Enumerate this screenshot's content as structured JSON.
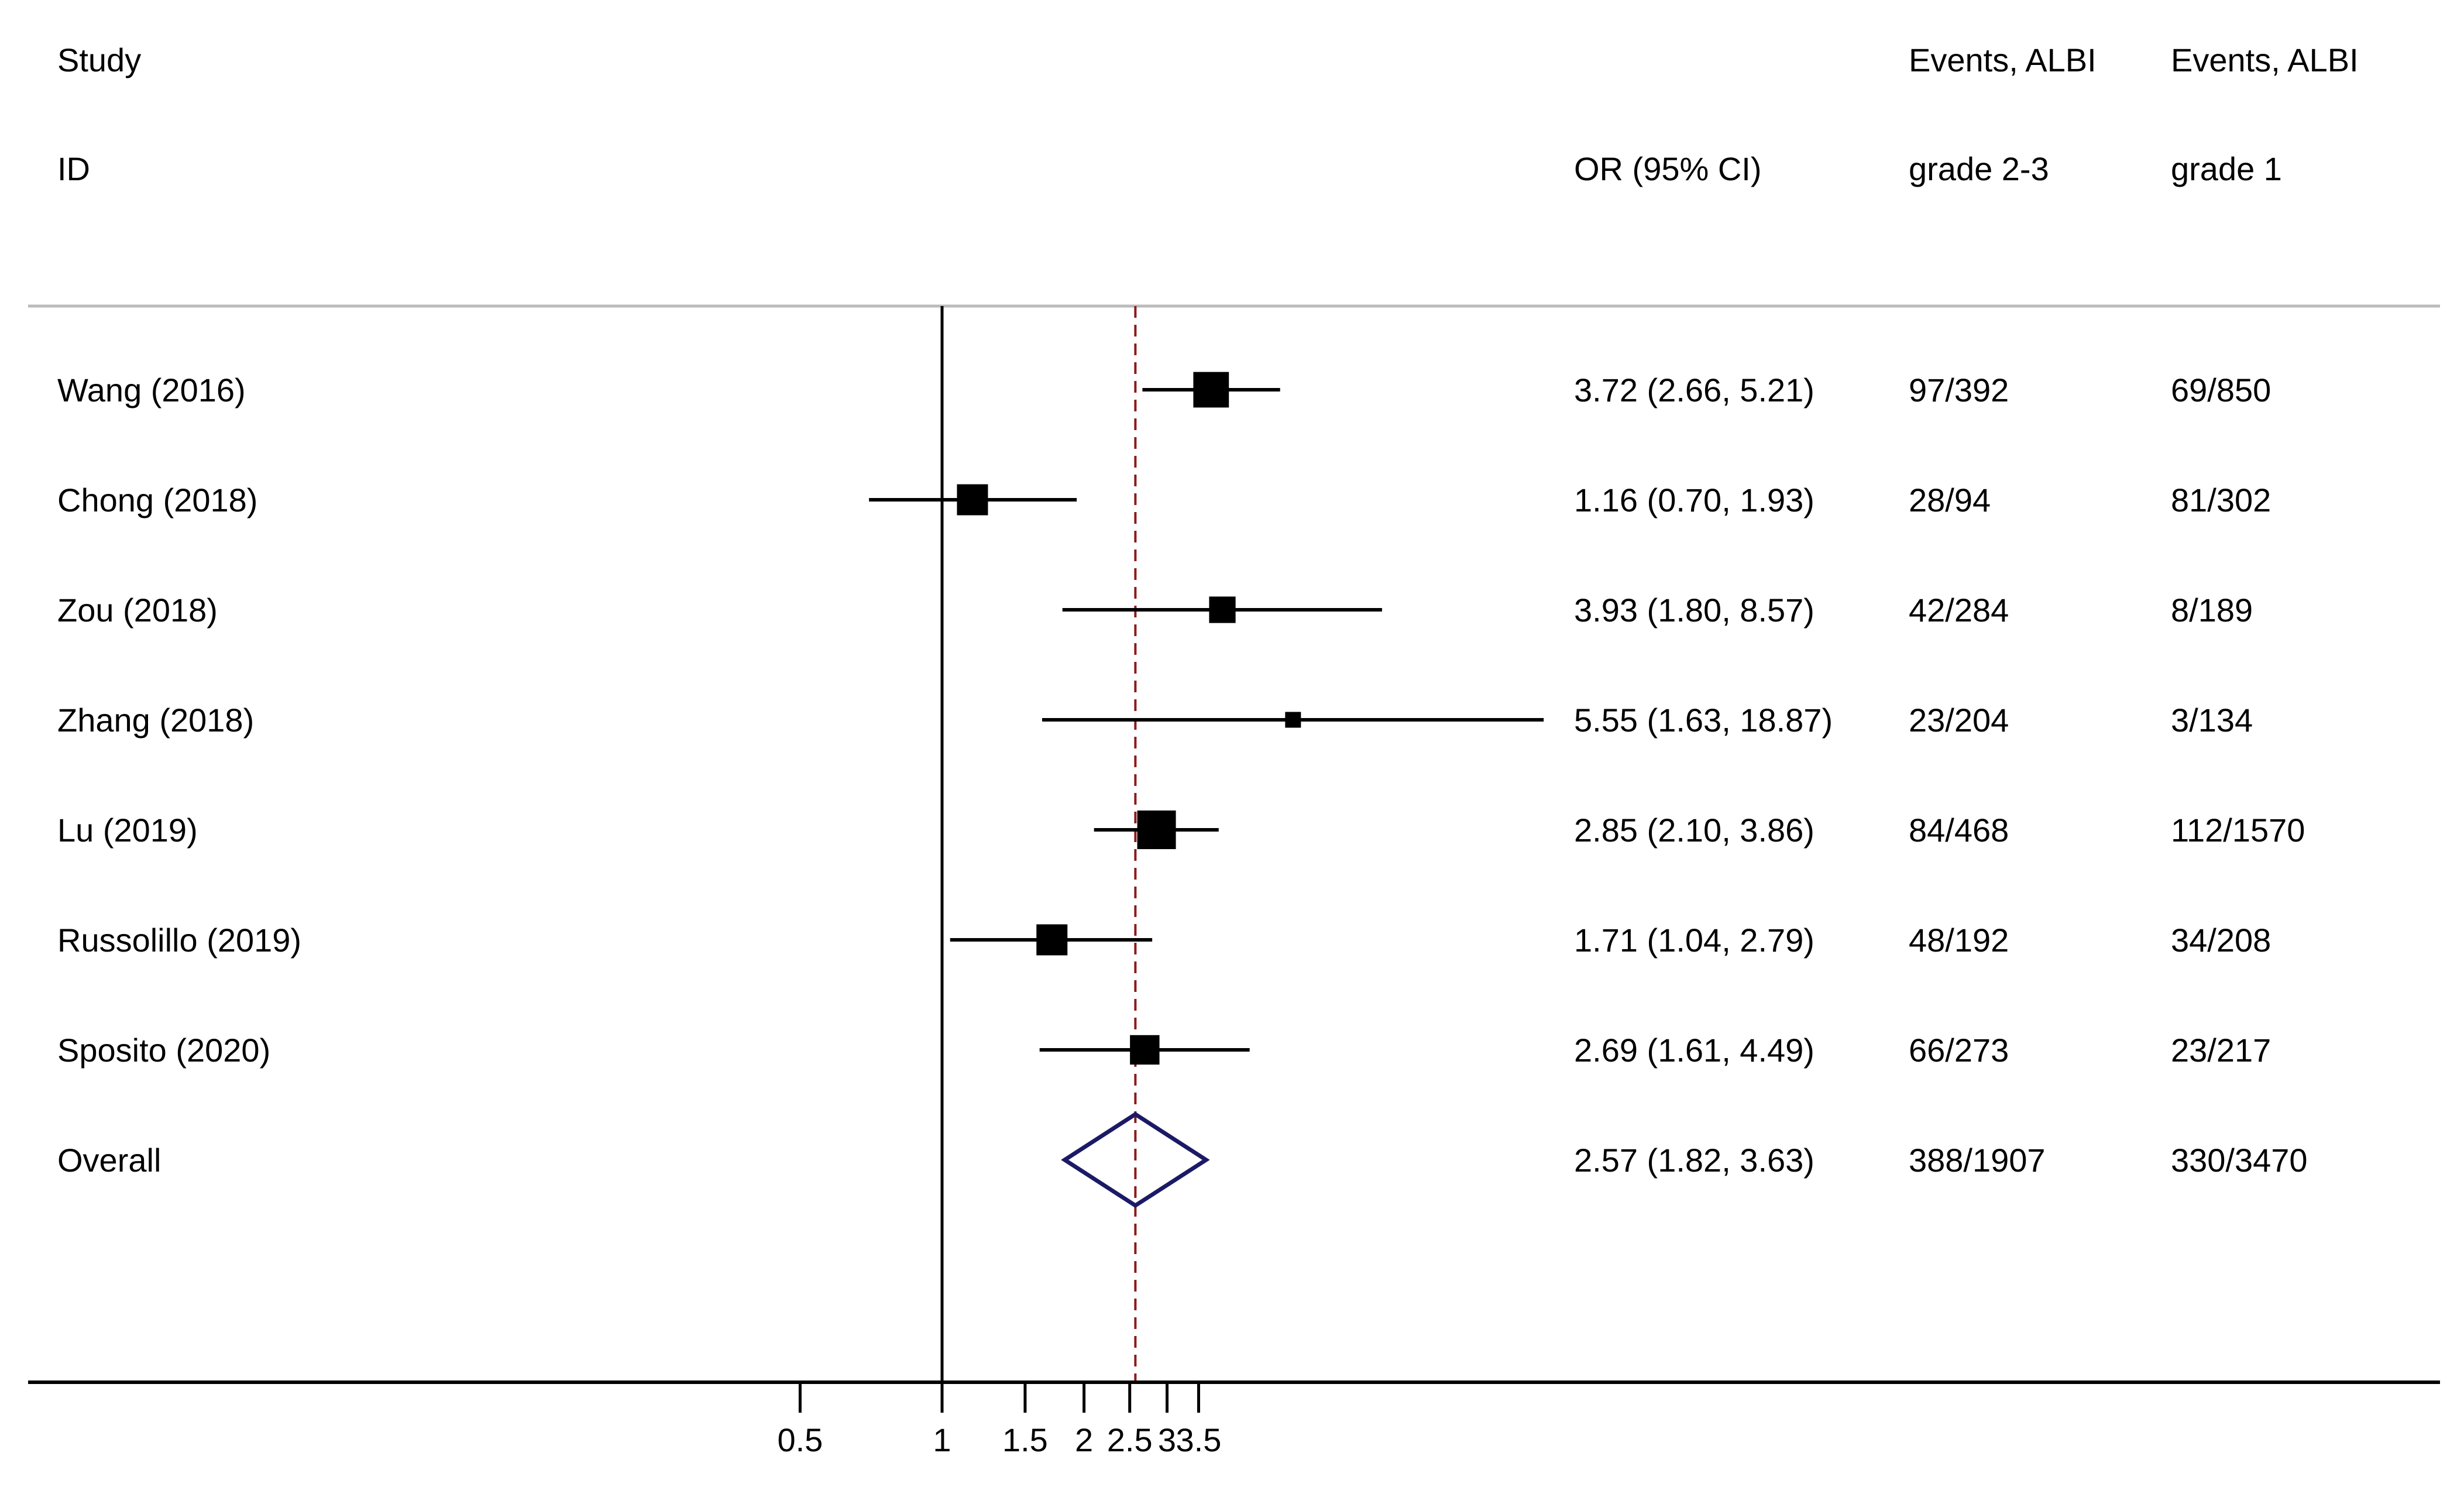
{
  "headers": {
    "study_line1": "Study",
    "study_line2": "ID",
    "or_header": "OR (95% CI)",
    "events_a_line1": "Events, ALBI",
    "events_a_line2": "grade 2-3",
    "events_b_line1": "Events, ALBI",
    "events_b_line2": "grade 1"
  },
  "colors": {
    "marker": "#000000",
    "reference_line": "#8b1a1a",
    "overall_diamond": "#1a1a66",
    "separator": "#bbbbbb"
  },
  "chart_data": {
    "type": "forest",
    "scale": "log",
    "x_ticks": [
      0.5,
      1,
      1.5,
      2,
      2.5,
      3,
      3.5
    ],
    "x_tick_labels": [
      "0.5",
      "1",
      "1.5",
      "2",
      "2.5",
      "3",
      "3.5"
    ],
    "xlim": [
      0.36,
      14.5
    ],
    "null_line": 1,
    "overall_line": 2.57,
    "studies": [
      {
        "study": "Wang (2016)",
        "or": 3.72,
        "lo": 2.66,
        "hi": 5.21,
        "weight": 3.6,
        "or_text": "3.72 (2.66, 5.21)",
        "events_a": "97/392",
        "events_b": "69/850"
      },
      {
        "study": "Chong (2018)",
        "or": 1.16,
        "lo": 0.7,
        "hi": 1.93,
        "weight": 3.0,
        "or_text": "1.16 (0.70, 1.93)",
        "events_a": "28/94",
        "events_b": "81/302"
      },
      {
        "study": "Zou (2018)",
        "or": 3.93,
        "lo": 1.8,
        "hi": 8.57,
        "weight": 2.4,
        "or_text": "3.93 (1.80, 8.57)",
        "events_a": "42/284",
        "events_b": "8/189"
      },
      {
        "study": "Zhang (2018)",
        "or": 5.55,
        "lo": 1.63,
        "hi": 18.87,
        "weight": 1.0,
        "or_text": "5.55 (1.63, 18.87)",
        "events_a": "23/204",
        "events_b": "3/134"
      },
      {
        "study": "Lu (2019)",
        "or": 2.85,
        "lo": 2.1,
        "hi": 3.86,
        "weight": 4.0,
        "or_text": "2.85 (2.10, 3.86)",
        "events_a": "84/468",
        "events_b": "112/1570"
      },
      {
        "study": "Russolillo (2019)",
        "or": 1.71,
        "lo": 1.04,
        "hi": 2.79,
        "weight": 3.0,
        "or_text": "1.71 (1.04, 2.79)",
        "events_a": "48/192",
        "events_b": "34/208"
      },
      {
        "study": "Sposito (2020)",
        "or": 2.69,
        "lo": 1.61,
        "hi": 4.49,
        "weight": 2.8,
        "or_text": "2.69 (1.61, 4.49)",
        "events_a": "66/273",
        "events_b": "23/217"
      }
    ],
    "overall": {
      "study": "Overall",
      "or": 2.57,
      "lo": 1.82,
      "hi": 3.63,
      "or_text": "2.57 (1.82, 3.63)",
      "events_a": "388/1907",
      "events_b": "330/3470"
    }
  }
}
